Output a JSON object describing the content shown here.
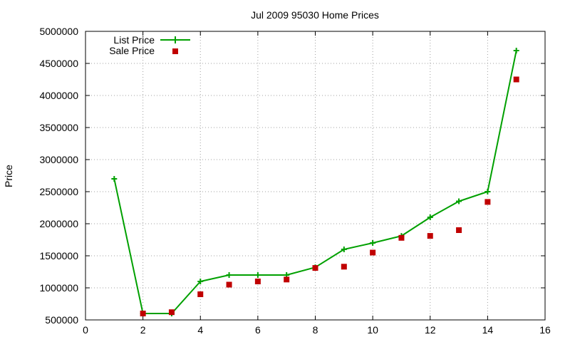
{
  "chart_data": {
    "type": "line",
    "title": "Jul 2009 95030 Home Prices",
    "xlabel": "",
    "ylabel": "Price",
    "xlim": [
      0,
      16
    ],
    "ylim": [
      500000,
      5000000
    ],
    "x_ticks": [
      "0",
      "2",
      "4",
      "6",
      "8",
      "10",
      "12",
      "14",
      "16"
    ],
    "y_ticks": [
      "500000",
      "1000000",
      "1500000",
      "2000000",
      "2500000",
      "3000000",
      "3500000",
      "4000000",
      "4500000",
      "5000000"
    ],
    "grid": true,
    "legend_position": "top-left",
    "series": [
      {
        "name": "List Price",
        "style": "linespoints",
        "color": "#00a000",
        "x": [
          1,
          2,
          3,
          4,
          5,
          6,
          7,
          8,
          9,
          10,
          11,
          12,
          13,
          14,
          15
        ],
        "y": [
          2700000,
          600000,
          600000,
          1100000,
          1200000,
          1200000,
          1200000,
          1320000,
          1600000,
          1700000,
          1810000,
          2100000,
          2350000,
          2500000,
          4700000
        ]
      },
      {
        "name": "Sale Price",
        "style": "points",
        "color": "#c00000",
        "x": [
          2,
          3,
          4,
          5,
          6,
          7,
          8,
          9,
          10,
          11,
          12,
          13,
          14,
          15
        ],
        "y": [
          600000,
          620000,
          900000,
          1050000,
          1100000,
          1130000,
          1310000,
          1330000,
          1550000,
          1780000,
          1810000,
          1900000,
          2340000,
          4250000
        ]
      }
    ]
  }
}
